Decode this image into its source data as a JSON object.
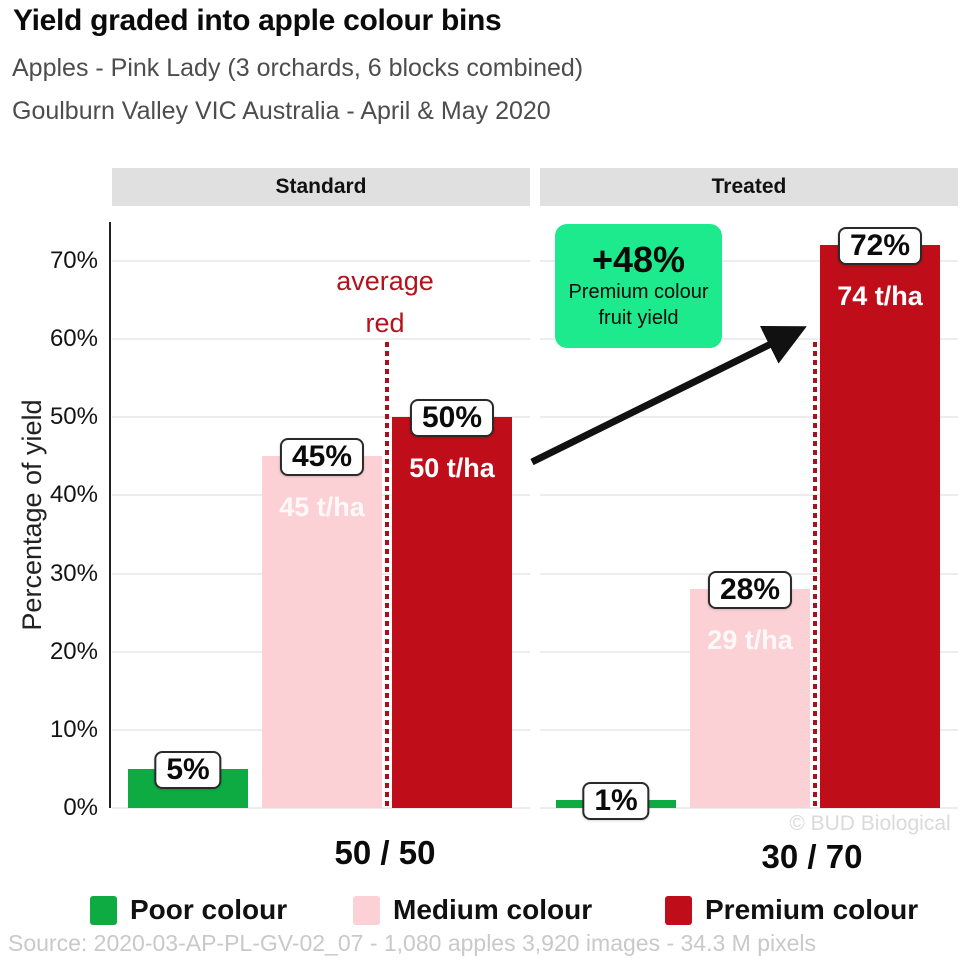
{
  "header": {
    "title": "Yield graded into apple colour bins",
    "subtitle1": "Apples - Pink Lady (3 orchards, 6 blocks combined)",
    "subtitle2": "Goulburn Valley VIC Australia - April & May 2020"
  },
  "chart_data": {
    "type": "bar",
    "ylabel": "Percentage of yield",
    "ylim": [
      0,
      75
    ],
    "yticks": [
      0,
      10,
      20,
      30,
      40,
      50,
      60,
      70
    ],
    "ytick_suffix": "%",
    "grid": true,
    "categories": [
      "Poor colour",
      "Medium colour",
      "Premium colour"
    ],
    "panels": [
      {
        "label": "Standard",
        "group_label": "50 / 50",
        "bars": [
          {
            "category": "Poor colour",
            "pct": 5,
            "pct_label": "5%",
            "tha_label": ""
          },
          {
            "category": "Medium colour",
            "pct": 45,
            "pct_label": "45%",
            "tha_label": "45 t/ha"
          },
          {
            "category": "Premium colour",
            "pct": 50,
            "pct_label": "50%",
            "tha_label": "50 t/ha"
          }
        ],
        "avg_red_line": true,
        "annotation": {
          "lines": [
            "average",
            "red"
          ]
        }
      },
      {
        "label": "Treated",
        "group_label": "30 / 70",
        "bars": [
          {
            "category": "Poor colour",
            "pct": 1,
            "pct_label": "1%",
            "tha_label": ""
          },
          {
            "category": "Medium colour",
            "pct": 28,
            "pct_label": "28%",
            "tha_label": "29 t/ha"
          },
          {
            "category": "Premium colour",
            "pct": 72,
            "pct_label": "72%",
            "tha_label": "74 t/ha"
          }
        ],
        "avg_red_line": true
      }
    ],
    "callout": {
      "headline": "+48%",
      "line1": "Premium colour",
      "line2": "fruit yield"
    },
    "legend": [
      {
        "label": "Poor colour",
        "color": "#0eab43"
      },
      {
        "label": "Medium colour",
        "color": "#fbd1d5"
      },
      {
        "label": "Premium colour",
        "color": "#bf0d1a"
      }
    ],
    "legend_position": "bottom"
  },
  "colors": {
    "facet_strip_bg": "#e0e0e0",
    "gridline": "#ededed",
    "axis": "#222222",
    "callout_bg": "#1de98d",
    "avg_line": "#a8101c",
    "annotation_text": "#b5121b",
    "arrow": "#111111",
    "tha_on_medium": "rgba(255,255,255,0.85)",
    "tha_on_premium": "#ffffff"
  },
  "watermark": "© BUD Biological",
  "source": "Source: 2020-03-AP-PL-GV-02_07 - 1,080 apples 3,920 images - 34.3 M pixels"
}
